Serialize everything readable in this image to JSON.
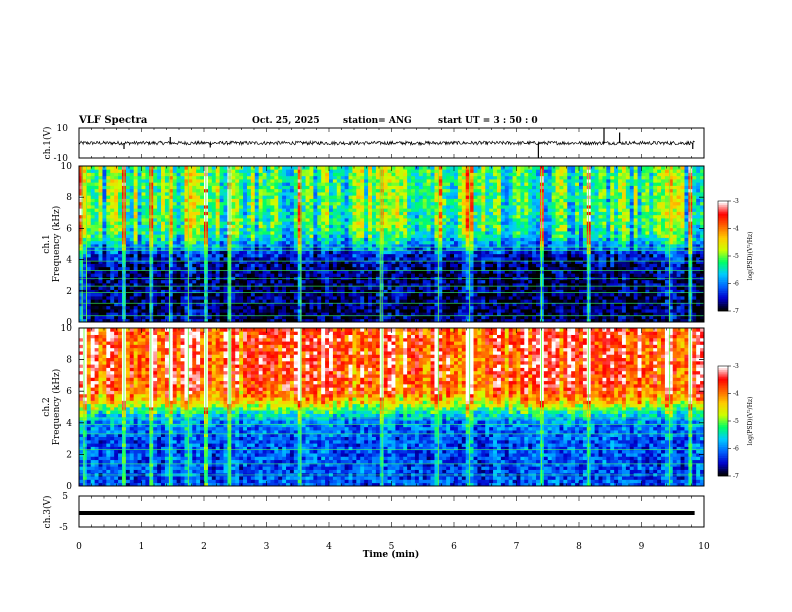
{
  "header": {
    "title": "VLF Spectra",
    "date": "Oct. 25, 2025",
    "station": "station= ANG",
    "start_ut": "start  UT =   3  : 50 : 0"
  },
  "chart_data": [
    {
      "type": "line",
      "name": "ch1-waveform",
      "ylabel": "ch.1(V)",
      "ylim": [
        -10,
        10
      ],
      "y_ticks": [
        "10",
        "-10"
      ],
      "baseline_v": 0,
      "noise_amplitude_v": 1.2,
      "spikes": [
        {
          "t": 0.72,
          "v": -4
        },
        {
          "t": 1.46,
          "v": 4
        },
        {
          "t": 2.1,
          "v": -3
        },
        {
          "t": 7.35,
          "v": -10
        },
        {
          "t": 8.4,
          "v": 10
        },
        {
          "t": 8.65,
          "v": 7
        },
        {
          "t": 9.82,
          "v": -4
        }
      ]
    },
    {
      "type": "heatmap",
      "name": "ch1-spectrogram",
      "ylabel_line1": "ch.1",
      "ylabel_line2": "Frequency (kHz)",
      "ylim": [
        0,
        10
      ],
      "y_ticks": [
        "0",
        "2",
        "4",
        "6",
        "8",
        "10"
      ],
      "levels_log_psd": [
        -7,
        -6,
        -5,
        -4,
        -3
      ],
      "low_band_level": -6.8,
      "high_band_level": -5.2,
      "high_band_from_khz": 4.8,
      "narrowband_lines_khz": [
        0.4,
        1.2,
        1.9,
        2.3,
        2.8,
        3.3,
        3.9,
        4.6,
        4.8
      ],
      "sferic_times_min": [
        0.05,
        0.12,
        0.72,
        1.15,
        1.45,
        1.75,
        2.03,
        2.4,
        2.42,
        3.55,
        4.82,
        4.85,
        5.75,
        6.25,
        7.4,
        8.15,
        9.45,
        9.78
      ]
    },
    {
      "type": "heatmap",
      "name": "ch2-spectrogram",
      "ylabel_line1": "ch.2",
      "ylabel_line2": "Frequency (kHz)",
      "ylim": [
        0,
        10
      ],
      "y_ticks": [
        "0",
        "2",
        "4",
        "6",
        "8",
        "10"
      ],
      "levels_log_psd": [
        -7,
        -6,
        -5,
        -4,
        -3
      ],
      "low_band_level": -6.2,
      "high_band_level": -3.6,
      "high_band_from_khz": 5.0,
      "narrowband_lines_khz": [
        0.7,
        1.4,
        2.3,
        3.3,
        3.9,
        4.3,
        4.8
      ],
      "sferic_times_min": [
        0.08,
        0.72,
        1.15,
        1.45,
        1.75,
        2.03,
        2.4,
        2.42,
        3.55,
        4.85,
        5.75,
        6.25,
        7.4,
        8.15,
        9.45,
        9.78
      ]
    },
    {
      "type": "line",
      "name": "ch3-waveform",
      "ylabel": "ch.3(V)",
      "ylim": [
        -5,
        5
      ],
      "y_ticks": [
        "5",
        "-5"
      ],
      "constant_v": -0.5
    }
  ],
  "x_axis": {
    "label": "Time (min)",
    "range": [
      0,
      10
    ],
    "ticks": [
      "0",
      "1",
      "2",
      "3",
      "4",
      "5",
      "6",
      "7",
      "8",
      "9",
      "10"
    ]
  },
  "colorbar": {
    "label": "log(PSD)(V²/Hz)",
    "tick_labels": [
      "-3",
      "-4",
      "-5",
      "-6",
      "-7"
    ],
    "colors": [
      "#000000",
      "#0000cc",
      "#0066ff",
      "#00ccff",
      "#00ff66",
      "#ccff00",
      "#ffcc00",
      "#ff6600",
      "#ff0000",
      "#ffffff"
    ]
  }
}
